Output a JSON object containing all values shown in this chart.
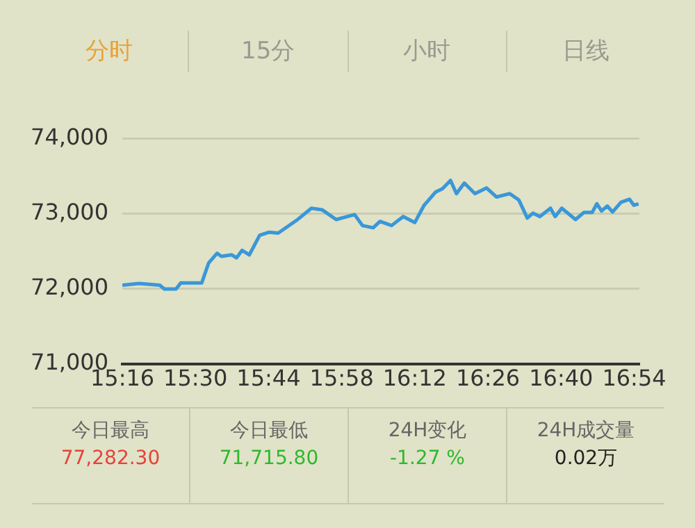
{
  "chart_data": {
    "type": "line",
    "color": "#3a97d9",
    "grid": "y",
    "marker": "none",
    "line_style": "solid",
    "x": [
      15.2667,
      15.32,
      15.3865,
      15.401,
      15.438,
      15.453,
      15.52,
      15.542,
      15.569,
      15.583,
      15.616,
      15.631,
      15.649,
      15.672,
      15.705,
      15.734,
      15.764,
      15.823,
      15.87,
      15.904,
      15.949,
      16.008,
      16.033,
      16.067,
      16.089,
      16.126,
      16.163,
      16.2,
      16.229,
      16.266,
      16.288,
      16.314,
      16.333,
      16.358,
      16.392,
      16.429,
      16.461,
      16.503,
      16.532,
      16.559,
      16.577,
      16.599,
      16.633,
      16.648,
      16.669,
      16.713,
      16.74,
      16.766,
      16.781,
      16.796,
      16.814,
      16.831,
      16.858,
      16.885,
      16.899,
      16.914
    ],
    "values": [
      72045,
      72070,
      72045,
      71995,
      71995,
      72075,
      72075,
      72340,
      72470,
      72430,
      72450,
      72410,
      72510,
      72450,
      72710,
      72750,
      72740,
      72910,
      73070,
      73050,
      72920,
      72985,
      72840,
      72810,
      72895,
      72840,
      72960,
      72880,
      73105,
      73285,
      73330,
      73440,
      73265,
      73405,
      73265,
      73340,
      73220,
      73265,
      73180,
      72940,
      73005,
      72960,
      73070,
      72960,
      73070,
      72920,
      73015,
      73015,
      73130,
      73035,
      73100,
      73020,
      73150,
      73190,
      73110,
      73130
    ],
    "xlim": [
      15.2667,
      16.9167
    ],
    "xticks": [
      {
        "value": 15.2667,
        "label": "15:16"
      },
      {
        "value": 15.5,
        "label": "15:30"
      },
      {
        "value": 15.7333,
        "label": "15:44"
      },
      {
        "value": 15.9667,
        "label": "15:58"
      },
      {
        "value": 16.2,
        "label": "16:12"
      },
      {
        "value": 16.4333,
        "label": "16:26"
      },
      {
        "value": 16.6667,
        "label": "16:40"
      },
      {
        "value": 16.9,
        "label": "16:54"
      }
    ],
    "ylim": [
      71000,
      74000
    ],
    "yticks": [
      {
        "value": 71000,
        "label": "71,000"
      },
      {
        "value": 72000,
        "label": "72,000"
      },
      {
        "value": 73000,
        "label": "73,000"
      },
      {
        "value": 74000,
        "label": "74,000"
      }
    ],
    "annotations": [
      "分时",
      "15分",
      "小时",
      "日线",
      "今日最高",
      "77,282.30",
      "今日最低",
      "71,715.80",
      "24H变化",
      "-1.27 %",
      "24H成交量",
      "0.02万"
    ]
  }
}
